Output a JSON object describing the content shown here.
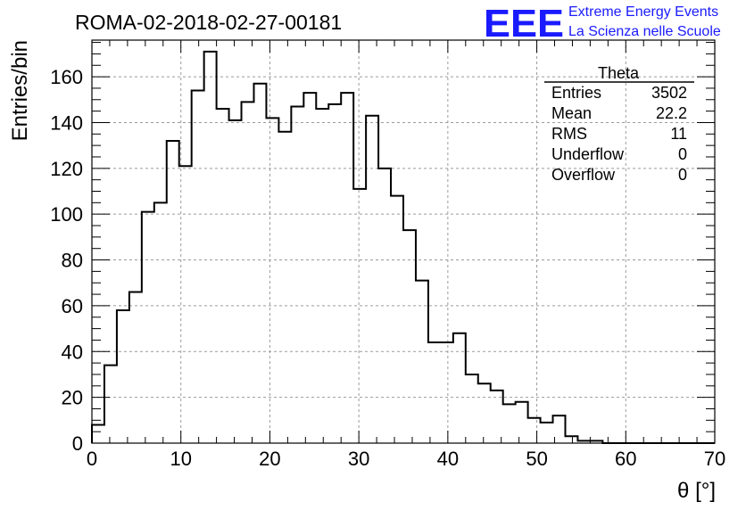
{
  "colors": {
    "histogram": "#000000",
    "logo": "#1a1aff",
    "grid": "#9a9a9a",
    "background": "#ffffff"
  },
  "chart_data": {
    "type": "histogram",
    "title": "ROMA-02-2018-02-27-00181",
    "xlabel": "θ [°]",
    "ylabel": "Entries/bin",
    "xlim": [
      0,
      70
    ],
    "ylim": [
      0,
      176
    ],
    "bin_width": 1.4,
    "xticks": [
      0,
      10,
      20,
      30,
      40,
      50,
      60,
      70
    ],
    "yticks": [
      0,
      20,
      40,
      60,
      80,
      100,
      120,
      140,
      160
    ],
    "grid": true,
    "values": [
      8,
      34,
      58,
      66,
      101,
      105,
      132,
      121,
      154,
      171,
      146,
      141,
      149,
      157,
      142,
      136,
      147,
      153,
      146,
      148,
      153,
      111,
      143,
      120,
      108,
      93,
      71,
      44,
      44,
      48,
      30,
      26,
      23,
      17,
      18,
      11,
      9,
      12,
      3,
      1,
      1,
      0,
      0,
      0,
      0,
      0,
      0,
      0,
      0,
      0
    ]
  },
  "stats_box": {
    "title": "Theta",
    "rows": [
      {
        "label": "Entries",
        "value": "3502"
      },
      {
        "label": "Mean",
        "value": "22.2"
      },
      {
        "label": "RMS",
        "value": "11"
      },
      {
        "label": "Underflow",
        "value": "0"
      },
      {
        "label": "Overflow",
        "value": "0"
      }
    ]
  },
  "logo": {
    "mark": "EEE",
    "line1": "Extreme Energy Events",
    "line2": "La Scienza nelle Scuole"
  }
}
